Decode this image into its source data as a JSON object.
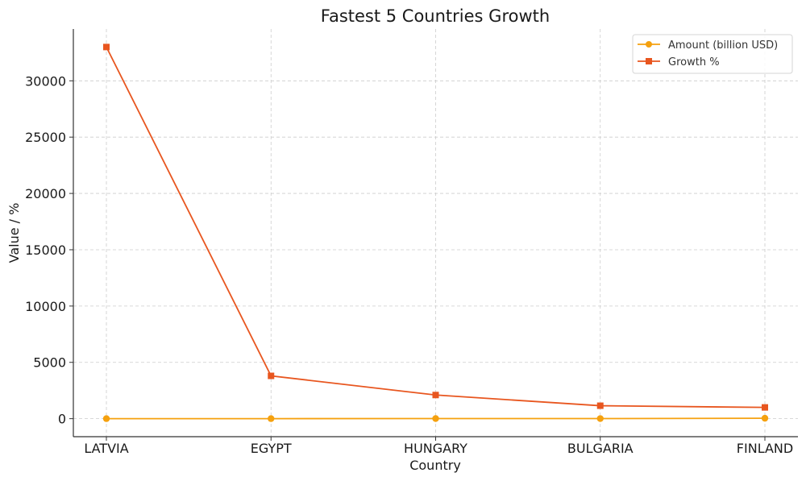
{
  "chart_data": {
    "type": "line",
    "title": "Fastest 5 Countries Growth",
    "xlabel": "Country",
    "ylabel": "Value / %",
    "categories": [
      "LATVIA",
      "EGYPT",
      "HUNGARY",
      "BULGARIA",
      "FINLAND"
    ],
    "ylim": [
      -1600,
      34600
    ],
    "yticks": [
      0,
      5000,
      10000,
      15000,
      20000,
      25000,
      30000
    ],
    "grid": true,
    "legend_position": "top-right",
    "series": [
      {
        "name": "Amount (billion USD)",
        "color": "#f5a10f",
        "marker": "circle",
        "values": [
          2,
          3,
          10,
          8,
          36
        ]
      },
      {
        "name": "Growth %",
        "color": "#e8561f",
        "marker": "square",
        "values": [
          33000,
          3800,
          2100,
          1150,
          1000
        ]
      }
    ]
  }
}
